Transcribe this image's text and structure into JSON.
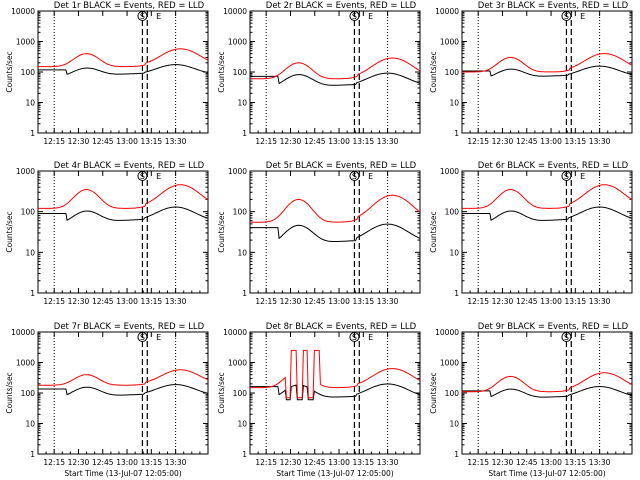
{
  "x_tick_labels_short": [
    "12:15",
    "12:30",
    "12:45",
    "13:00",
    "13:15",
    "13:30"
  ],
  "x_tick_labels_long": [
    "12:15",
    "12:30",
    "12:45",
    "13:00",
    "13:15",
    "13:30"
  ],
  "x_tick_labels_r50": [
    "12:15",
    "12:30",
    "12:45",
    "13:00",
    "13:15",
    "13:30"
  ],
  "chart_data": [
    {
      "type": "line",
      "title": "Det 1r BLACK = Events, RED = LLD",
      "ylabel": "Counts/sec",
      "xlabel": "",
      "y_scale": "log",
      "ylim": [
        1,
        10000
      ],
      "y_tick_labels": [
        "10000",
        "1000",
        "100",
        "10",
        "1"
      ],
      "x_tick_labels": [
        "12:15",
        "12:30",
        "12:45",
        "13:00",
        "13:15",
        "13:30"
      ],
      "markers": [
        "S",
        "E"
      ],
      "colors": {
        "events": "#000000",
        "lld": "#ff0000"
      },
      "series": [
        {
          "name": "BLACK = Events",
          "key": "events"
        },
        {
          "name": "RED = LLD",
          "key": "lld"
        }
      ]
    },
    {
      "type": "line",
      "title": "Det 2r BLACK = Events, RED = LLD",
      "ylabel": "Counts/sec",
      "xlabel": "",
      "y_scale": "log",
      "ylim": [
        1,
        10000
      ],
      "y_tick_labels": [
        "10000",
        "1000",
        "100",
        "10",
        "1"
      ],
      "x_tick_labels": [
        "12:15",
        "12:30",
        "12:45",
        "13:00",
        "13:15",
        "13:30"
      ],
      "markers": [
        "S",
        "E"
      ],
      "colors": {
        "events": "#000000",
        "lld": "#ff0000"
      },
      "series": [
        {
          "name": "BLACK = Events",
          "key": "events"
        },
        {
          "name": "RED = LLD",
          "key": "lld"
        }
      ]
    },
    {
      "type": "line",
      "title": "Det 3r BLACK = Events, RED = LLD",
      "ylabel": "Counts/sec",
      "xlabel": "",
      "y_scale": "log",
      "ylim": [
        1,
        10000
      ],
      "y_tick_labels": [
        "10000",
        "1000",
        "100",
        "10",
        "1"
      ],
      "x_tick_labels": [
        "12:15",
        "12:30",
        "12:45",
        "13:00",
        "13:15",
        "13:30"
      ],
      "markers": [
        "S",
        "E"
      ],
      "colors": {
        "events": "#000000",
        "lld": "#ff0000"
      },
      "series": [
        {
          "name": "BLACK = Events",
          "key": "events"
        },
        {
          "name": "RED = LLD",
          "key": "lld"
        }
      ]
    },
    {
      "type": "line",
      "title": "Det 4r BLACK = Events, RED = LLD",
      "ylabel": "Counts/sec",
      "xlabel": "",
      "y_scale": "log",
      "ylim": [
        1,
        1000
      ],
      "y_tick_labels": [
        "1000",
        "100",
        "10",
        "1"
      ],
      "x_tick_labels": [
        "12:15",
        "12:30",
        "12:45",
        "13:00",
        "13:15",
        "13:30"
      ],
      "markers": [
        "S",
        "E"
      ],
      "colors": {
        "events": "#000000",
        "lld": "#ff0000"
      },
      "series": [
        {
          "name": "BLACK = Events",
          "key": "events"
        },
        {
          "name": "RED = LLD",
          "key": "lld"
        }
      ]
    },
    {
      "type": "line",
      "title": "Det 5r BLACK = Events, RED = LLD",
      "ylabel": "Counts/sec",
      "xlabel": "",
      "y_scale": "log",
      "ylim": [
        1,
        1000
      ],
      "y_tick_labels": [
        "1000",
        "100",
        "10",
        "1"
      ],
      "x_tick_labels": [
        "12:15",
        "12:30",
        "12:45",
        "13:00",
        "13:15",
        "13:30"
      ],
      "markers": [
        "S",
        "E"
      ],
      "colors": {
        "events": "#000000",
        "lld": "#ff0000"
      },
      "series": [
        {
          "name": "BLACK = Events",
          "key": "events"
        },
        {
          "name": "RED = LLD",
          "key": "lld"
        }
      ]
    },
    {
      "type": "line",
      "title": "Det 6r BLACK = Events, RED = LLD",
      "ylabel": "Counts/sec",
      "xlabel": "",
      "y_scale": "log",
      "ylim": [
        1,
        1000
      ],
      "y_tick_labels": [
        "1000",
        "100",
        "10",
        "1"
      ],
      "x_tick_labels": [
        "12:15",
        "12:30",
        "12:45",
        "13:00",
        "13:15",
        "13:30"
      ],
      "markers": [
        "S",
        "E"
      ],
      "colors": {
        "events": "#000000",
        "lld": "#ff0000"
      },
      "series": [
        {
          "name": "BLACK = Events",
          "key": "events"
        },
        {
          "name": "RED = LLD",
          "key": "lld"
        }
      ]
    },
    {
      "type": "line",
      "title": "Det 7r BLACK = Events, RED = LLD",
      "ylabel": "Counts/sec",
      "xlabel": "Start Time (13-Jul-07 12:05:00)",
      "y_scale": "log",
      "ylim": [
        1,
        10000
      ],
      "y_tick_labels": [
        "10000",
        "1000",
        "100",
        "10",
        "1"
      ],
      "x_tick_labels": [
        "12:15",
        "12:30",
        "12:45",
        "13:00",
        "13:15",
        "13:30"
      ],
      "markers": [
        "S",
        "E"
      ],
      "colors": {
        "events": "#000000",
        "lld": "#ff0000"
      },
      "series": [
        {
          "name": "BLACK = Events",
          "key": "events"
        },
        {
          "name": "RED = LLD",
          "key": "lld"
        }
      ]
    },
    {
      "type": "line",
      "title": "Det 8r BLACK = Events, RED = LLD",
      "ylabel": "Counts/sec",
      "xlabel": "Start Time (13-Jul-07 12:05:00)",
      "y_scale": "log",
      "ylim": [
        1,
        10000
      ],
      "y_tick_labels": [
        "10000",
        "1000",
        "100",
        "10",
        "1"
      ],
      "x_tick_labels": [
        "12:15",
        "12:30",
        "12:45",
        "13:00",
        "13:15",
        "13:30"
      ],
      "markers": [
        "S",
        "E"
      ],
      "colors": {
        "events": "#000000",
        "lld": "#ff0000"
      },
      "series": [
        {
          "name": "BLACK = Events",
          "key": "events"
        },
        {
          "name": "RED = LLD",
          "key": "lld"
        }
      ]
    },
    {
      "type": "line",
      "title": "Det 9r BLACK = Events, RED = LLD",
      "ylabel": "Counts/sec",
      "xlabel": "Start Time (13-Jul-07 12:05:00)",
      "y_scale": "log",
      "ylim": [
        1,
        10000
      ],
      "y_tick_labels": [
        "10000",
        "1000",
        "100",
        "10",
        "1"
      ],
      "x_tick_labels": [
        "12:15",
        "12:30",
        "12:45",
        "13:00",
        "13:15",
        "13:30"
      ],
      "markers": [
        "S",
        "E"
      ],
      "colors": {
        "events": "#000000",
        "lld": "#ff0000"
      },
      "series": [
        {
          "name": "BLACK = Events",
          "key": "events"
        },
        {
          "name": "RED = LLD",
          "key": "lld"
        }
      ]
    }
  ]
}
